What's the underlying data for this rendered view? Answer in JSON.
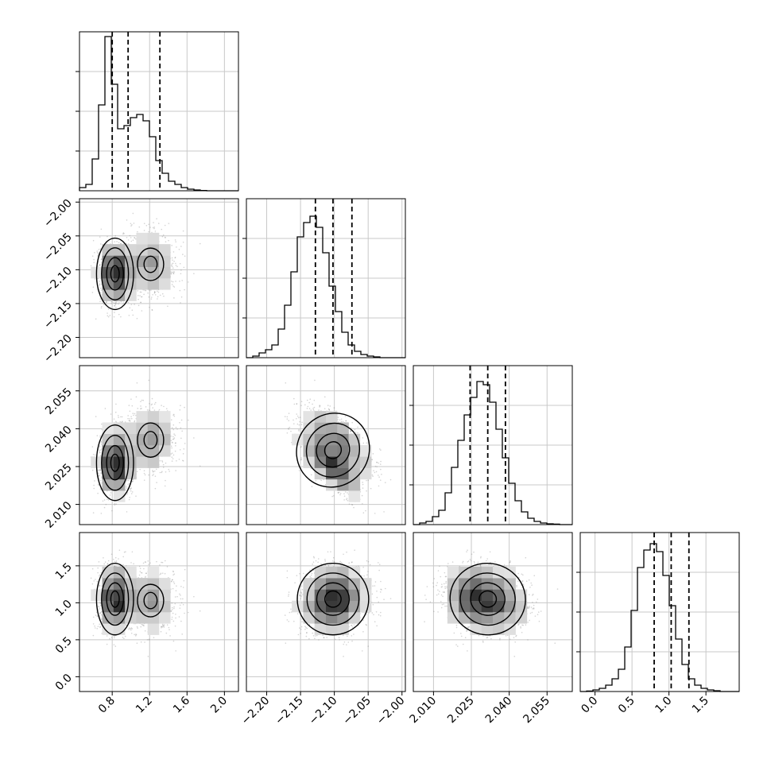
{
  "colors": {
    "frame": "#000000",
    "grid": "#c8c8c8",
    "histogram": "#000000",
    "quantile_line": "#000000",
    "scatter_points": "#808080",
    "density_dark": "#303030",
    "density_light": "#ffffff"
  },
  "chart_data": {
    "type": "corner",
    "title": "",
    "parameters": [
      "",
      "",
      "",
      ""
    ],
    "grid": true,
    "ranges": [
      [
        0.45,
        2.15
      ],
      [
        -2.23,
        -1.995
      ],
      [
        2.002,
        2.065
      ],
      [
        -0.2,
        1.95
      ]
    ],
    "ticks": [
      {
        "values": [
          0.8,
          1.2,
          1.6,
          2.0
        ],
        "labels": [
          "0.8",
          "1.2",
          "1.6",
          "2.0"
        ]
      },
      {
        "values": [
          -2.2,
          -2.15,
          -2.1,
          -2.05,
          -2.0
        ],
        "labels": [
          "−2.20",
          "−2.15",
          "−2.10",
          "−2.05",
          "−2.00"
        ]
      },
      {
        "values": [
          2.01,
          2.025,
          2.04,
          2.055
        ],
        "labels": [
          "2.010",
          "2.025",
          "2.040",
          "2.055"
        ]
      },
      {
        "values": [
          0.0,
          0.5,
          1.0,
          1.5
        ],
        "labels": [
          "0.0",
          "0.5",
          "1.0",
          "1.5"
        ]
      }
    ],
    "quantiles": [
      [
        0.8,
        0.97,
        1.31
      ],
      [
        -2.128,
        -2.102,
        -2.074
      ],
      [
        2.0245,
        2.0315,
        2.0385
      ],
      [
        0.8,
        1.03,
        1.27
      ]
    ],
    "histograms": [
      {
        "bins": 25,
        "counts": [
          0.02,
          0.04,
          0.2,
          0.54,
          0.97,
          0.67,
          0.39,
          0.41,
          0.46,
          0.48,
          0.44,
          0.34,
          0.19,
          0.11,
          0.06,
          0.04,
          0.02,
          0.01,
          0.005,
          0.002,
          0.0,
          0.0,
          0.0,
          0.0,
          0.0
        ]
      },
      {
        "bins": 25,
        "counts": [
          0.0,
          0.01,
          0.03,
          0.05,
          0.08,
          0.18,
          0.33,
          0.54,
          0.76,
          0.85,
          0.89,
          0.82,
          0.66,
          0.45,
          0.29,
          0.16,
          0.08,
          0.04,
          0.02,
          0.01,
          0.005,
          0.0,
          0.0,
          0.0,
          0.0
        ]
      },
      {
        "bins": 25,
        "counts": [
          0.0,
          0.01,
          0.02,
          0.05,
          0.09,
          0.2,
          0.36,
          0.53,
          0.69,
          0.8,
          0.9,
          0.88,
          0.77,
          0.6,
          0.42,
          0.26,
          0.15,
          0.08,
          0.04,
          0.02,
          0.01,
          0.005,
          0.003,
          0.0,
          0.0
        ]
      },
      {
        "bins": 25,
        "counts": [
          0.0,
          0.003,
          0.01,
          0.02,
          0.04,
          0.08,
          0.14,
          0.28,
          0.51,
          0.78,
          0.89,
          0.93,
          0.88,
          0.73,
          0.54,
          0.33,
          0.17,
          0.08,
          0.04,
          0.02,
          0.01,
          0.005,
          0.0,
          0.0,
          0.0
        ]
      }
    ],
    "joint_modes": {
      "p0": [
        {
          "center": 0.83,
          "spread": 0.09,
          "weight": 0.6
        },
        {
          "center": 1.21,
          "spread": 0.14,
          "weight": 0.4
        }
      ],
      "p1_center": -2.102,
      "p1_sd": 0.024,
      "p2_center": 2.0315,
      "p2_sd": 0.0068,
      "p3_center": 1.05,
      "p3_sd": 0.22,
      "corr_p1_p2": -0.75,
      "corr_p2_p3": -0.15,
      "p0_mode_offsets": {
        "p1": [
          -0.004,
          0.01
        ],
        "p2": [
          -0.005,
          0.004
        ],
        "p3": [
          0.0,
          -0.02
        ]
      }
    }
  }
}
